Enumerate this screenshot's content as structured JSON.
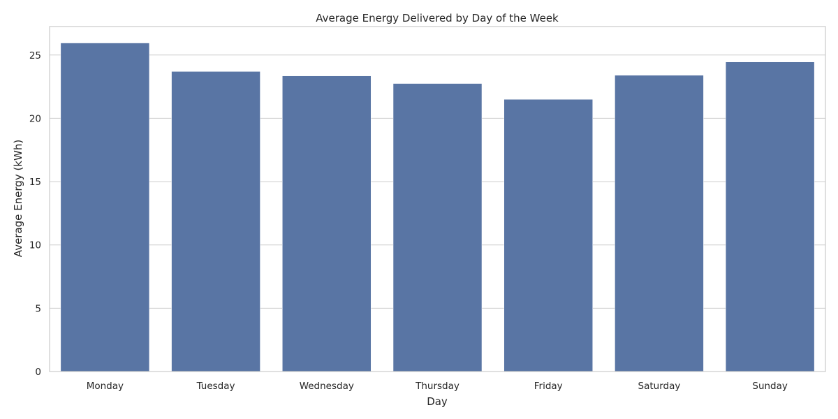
{
  "colors": {
    "bar": "#5975a4",
    "grid": "#cccccc",
    "axes_edge": "#cccccc",
    "background": "#ffffff"
  },
  "chart_data": {
    "type": "bar",
    "title": "Average Energy Delivered by Day of the Week",
    "xlabel": "Day",
    "ylabel": "Average Energy (kWh)",
    "categories": [
      "Monday",
      "Tuesday",
      "Wednesday",
      "Thursday",
      "Friday",
      "Saturday",
      "Sunday"
    ],
    "values": [
      25.95,
      23.7,
      23.35,
      22.75,
      21.5,
      23.4,
      24.45
    ],
    "ylim": [
      0,
      27.25
    ],
    "yticks": [
      0,
      5,
      10,
      15,
      20,
      25
    ],
    "grid": "y",
    "legend": "none"
  }
}
